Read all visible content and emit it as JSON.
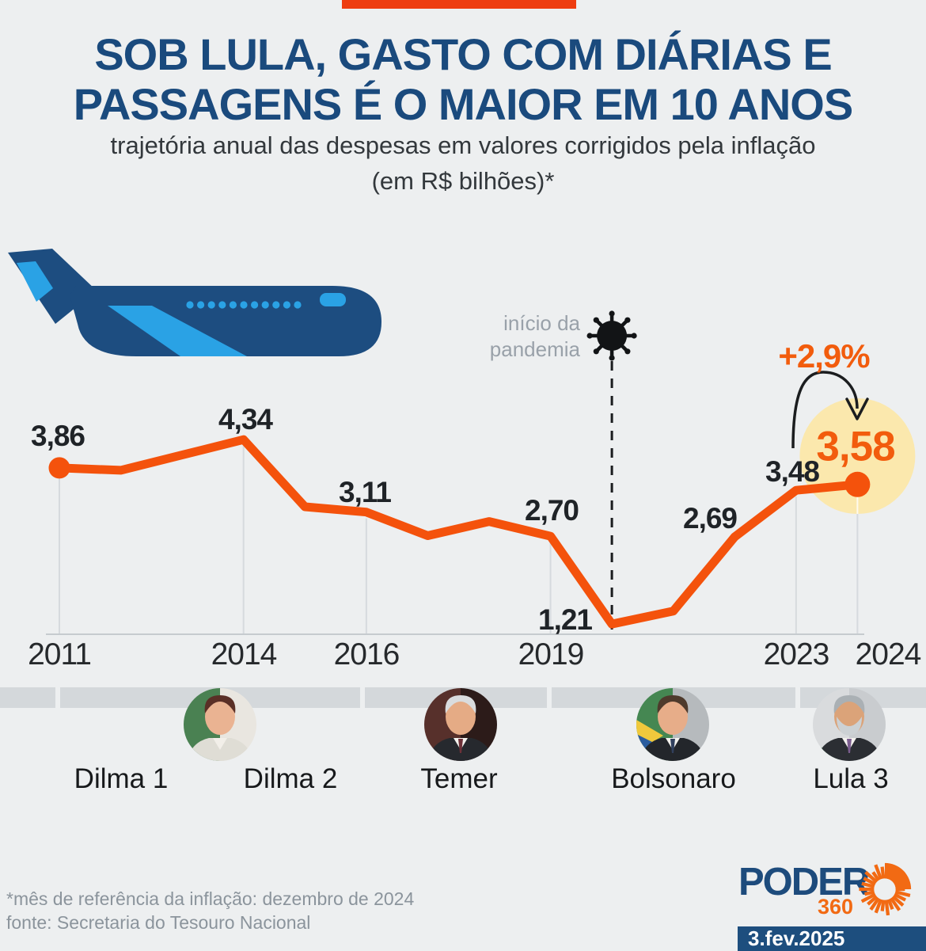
{
  "page": {
    "background_color": "#edeff0"
  },
  "header": {
    "accent_bar_color": "#ee3d10",
    "title_lines": [
      "SOB LULA, GASTO COM DIÁRIAS E",
      "PASSAGENS É O MAIOR EM 10 ANOS"
    ],
    "title_color": "#1a4a7d",
    "subtitle_lines": [
      "trajetória anual das despesas em valores corrigidos pela inflação",
      "(em R$ bilhões)*"
    ]
  },
  "chart_data": {
    "type": "line",
    "title": "trajetória anual das despesas em valores corrigidos pela inflação (em R$ bilhões)",
    "x": [
      2011,
      2012,
      2013,
      2014,
      2015,
      2016,
      2017,
      2018,
      2019,
      2020,
      2021,
      2022,
      2023,
      2024
    ],
    "values": [
      3.86,
      3.82,
      4.08,
      4.34,
      3.2,
      3.11,
      2.71,
      2.95,
      2.7,
      1.21,
      1.43,
      2.69,
      3.48,
      3.58
    ],
    "labeled_points": [
      {
        "year": 2011,
        "label": "3,86"
      },
      {
        "year": 2014,
        "label": "4,34"
      },
      {
        "year": 2016,
        "label": "3,11"
      },
      {
        "year": 2019,
        "label": "2,70"
      },
      {
        "year": 2020,
        "label": "1,21"
      },
      {
        "year": 2022,
        "label": "2,69"
      },
      {
        "year": 2023,
        "label": "3,48"
      },
      {
        "year": 2024,
        "label": "3,58",
        "highlight": true
      }
    ],
    "x_tick_labels": [
      "2011",
      "2014",
      "2016",
      "2019",
      "2023",
      "2024"
    ],
    "grid": "vertical gridlines at labeled years only",
    "legend": "none",
    "line_color": "#f4520c",
    "highlight_circle_color": "#fbe8ad",
    "highlight_value_color": "#f25c0d",
    "annotations": {
      "pandemic_lines": [
        "início da",
        "pandemia"
      ],
      "pandemic_year": 2020,
      "pct_change_label": "+2,9%",
      "pct_change_from_year": 2023,
      "pct_change_to_year": 2024,
      "pct_change_color": "#f25c0d"
    }
  },
  "timeline": {
    "band_color": "#d4d8db",
    "term_labels": [
      "Dilma 1",
      "Dilma 2",
      "Temer",
      "Bolsonaro",
      "Lula 3"
    ],
    "avatars": [
      {
        "name": "dilma",
        "bg": [
          "#4a8152",
          "#e9e6e0"
        ],
        "hair": "#5a2f26",
        "skin": "#eab392",
        "outfit": "#dfddd5",
        "shirt": "#f2efe9"
      },
      {
        "name": "temer",
        "bg": [
          "#57302b",
          "#2c1b19"
        ],
        "hair": "#d9dcde",
        "skin": "#e5ab85",
        "outfit": "#26292e",
        "shirt": "#f4f2ee",
        "tie": "#6d3038"
      },
      {
        "name": "bolsonaro",
        "bg": [
          "#458752",
          "#b6babd"
        ],
        "hair": "#4e3a2c",
        "skin": "#e7ad89",
        "outfit": "#23262b",
        "shirt": "#f4f2ee",
        "tie": "#31405e",
        "flag": [
          "#f0c93c",
          "#2a5c9e"
        ]
      },
      {
        "name": "lula",
        "bg": [
          "#d9dbdd",
          "#c9cccf"
        ],
        "hair": "#aab0b4",
        "beard": "#ccd1d4",
        "skin": "#dba379",
        "outfit": "#2b2e33",
        "shirt": "#f4f2ee",
        "tie": "#7b5d8f",
        "sash": [
          "#2e8a46",
          "#f0c93c"
        ]
      }
    ]
  },
  "illustration": {
    "plane_dark": "#1d4d80",
    "plane_light": "#2aa2e5"
  },
  "footer": {
    "note": "*mês de referência da inflação: dezembro de 2024",
    "source": "fonte: Secretaria do Tesouro Nacional",
    "text_color": "#8b949c"
  },
  "branding": {
    "logo_text": "PODER",
    "logo_suffix": "360",
    "logo_color": "#1d4b7c",
    "logo_accent_color": "#f26a13",
    "date": "3.fev.2025",
    "date_bg_color": "#1d4e7e"
  }
}
